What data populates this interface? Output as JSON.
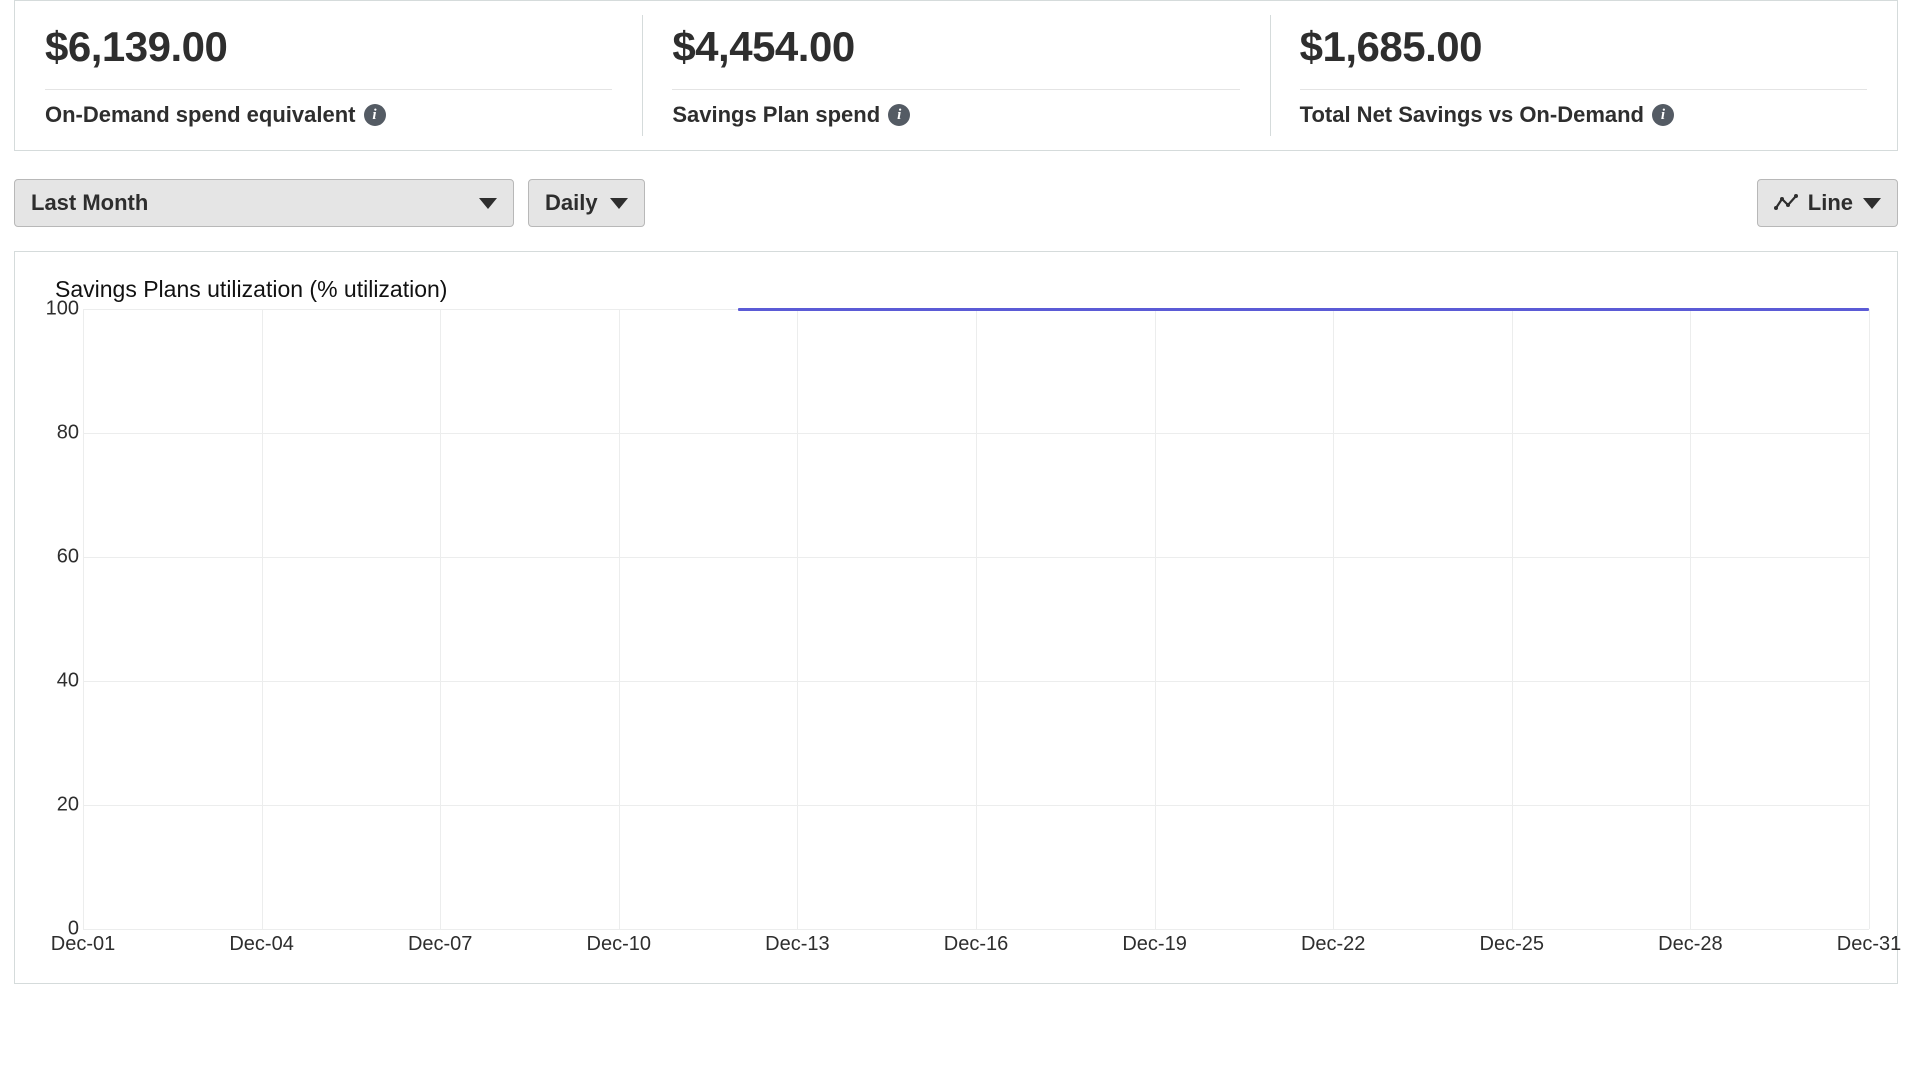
{
  "metrics": [
    {
      "value": "$6,139.00",
      "label": "On-Demand spend equivalent"
    },
    {
      "value": "$4,454.00",
      "label": "Savings Plan spend"
    },
    {
      "value": "$1,685.00",
      "label": "Total Net Savings vs On-Demand"
    }
  ],
  "controls": {
    "range_label": "Last Month",
    "granularity_label": "Daily",
    "chart_type_label": "Line"
  },
  "chart": {
    "type": "line",
    "title": "Savings Plans utilization (% utilization)",
    "y": {
      "min": 0,
      "max": 100,
      "ticks": [
        0,
        20,
        40,
        60,
        80,
        100
      ],
      "tick_labels": [
        "0",
        "20",
        "40",
        "60",
        "80",
        "100"
      ]
    },
    "x": {
      "domain_min": 1,
      "domain_max": 31,
      "tick_positions": [
        1,
        4,
        7,
        10,
        13,
        16,
        19,
        22,
        25,
        28,
        31
      ],
      "tick_labels": [
        "Dec-01",
        "Dec-04",
        "Dec-07",
        "Dec-10",
        "Dec-13",
        "Dec-16",
        "Dec-19",
        "Dec-22",
        "Dec-25",
        "Dec-28",
        "Dec-31"
      ]
    },
    "series": [
      {
        "name": "utilization",
        "color": "#5b5bd6",
        "line_width": 3,
        "points": [
          {
            "x": 12,
            "y": 100
          },
          {
            "x": 31,
            "y": 100
          }
        ]
      }
    ],
    "grid_color": "#eceded",
    "background_color": "#ffffff",
    "axis_label_fontsize": 20,
    "title_fontsize": 23
  }
}
